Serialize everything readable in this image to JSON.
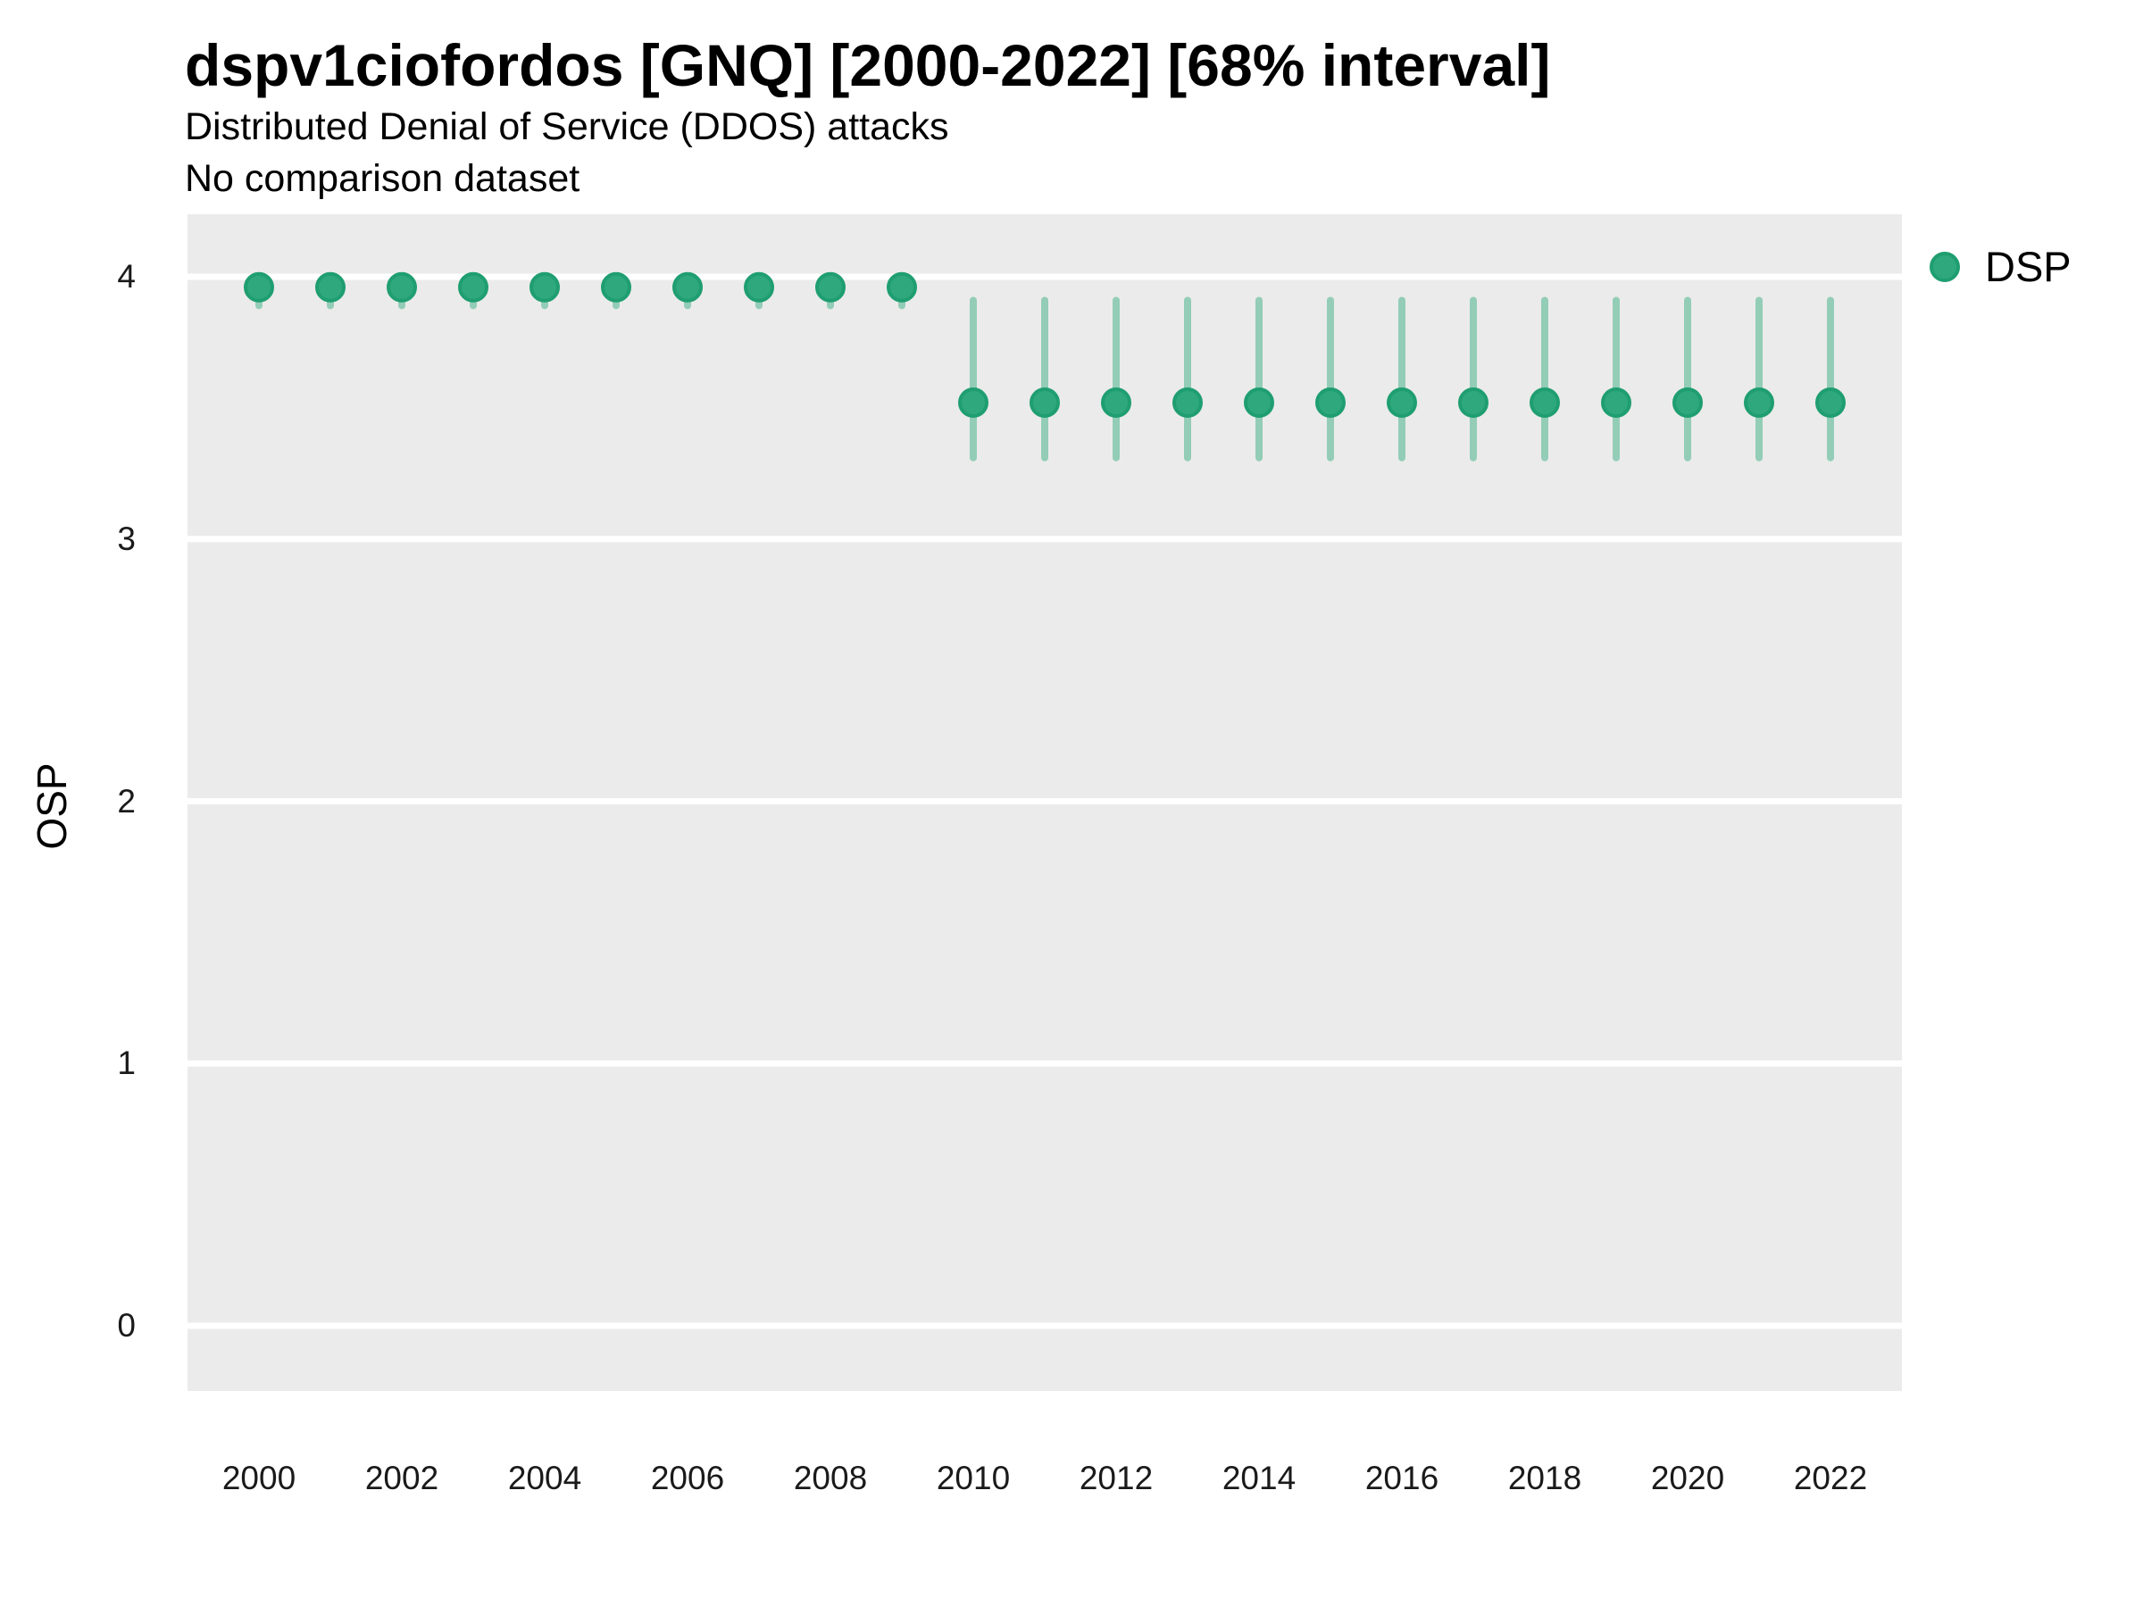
{
  "header": {
    "title": "dspv1ciofordos [GNQ] [2000-2022] [68% interval]",
    "subtitle": "Distributed Denial of Service (DDOS) attacks",
    "note": "No comparison dataset"
  },
  "legend": {
    "label": "DSP"
  },
  "chart_data": {
    "type": "scatter",
    "title": "dspv1ciofordos [GNQ] [2000-2022] [68% interval]",
    "subtitle": "Distributed Denial of Service (DDOS) attacks",
    "note": "No comparison dataset",
    "interval": "68%",
    "xlabel": "",
    "ylabel": "OSP",
    "xlim": [
      1999,
      2023
    ],
    "ylim": [
      -0.25,
      4.24
    ],
    "x_ticks": [
      2000,
      2002,
      2004,
      2006,
      2008,
      2010,
      2012,
      2014,
      2016,
      2018,
      2020,
      2022
    ],
    "y_ticks": [
      0,
      1,
      2,
      3,
      4
    ],
    "grid": "horizontal major white gridlines on gray panel, no vertical gridlines",
    "legend_position": "right",
    "series": [
      {
        "name": "DSP",
        "x": [
          2000,
          2001,
          2002,
          2003,
          2004,
          2005,
          2006,
          2007,
          2008,
          2009,
          2010,
          2011,
          2012,
          2013,
          2014,
          2015,
          2016,
          2017,
          2018,
          2019,
          2020,
          2021,
          2022
        ],
        "y": [
          3.96,
          3.96,
          3.96,
          3.96,
          3.96,
          3.96,
          3.96,
          3.96,
          3.96,
          3.96,
          3.52,
          3.52,
          3.52,
          3.52,
          3.52,
          3.52,
          3.52,
          3.52,
          3.52,
          3.52,
          3.52,
          3.52,
          3.52
        ],
        "lo": [
          3.89,
          3.89,
          3.89,
          3.89,
          3.89,
          3.89,
          3.89,
          3.89,
          3.89,
          3.89,
          3.31,
          3.31,
          3.31,
          3.31,
          3.31,
          3.31,
          3.31,
          3.31,
          3.31,
          3.31,
          3.31,
          3.31,
          3.31
        ],
        "hi": [
          3.99,
          3.99,
          3.99,
          3.99,
          3.99,
          3.99,
          3.99,
          3.99,
          3.99,
          3.99,
          3.91,
          3.91,
          3.91,
          3.91,
          3.91,
          3.91,
          3.91,
          3.91,
          3.91,
          3.91,
          3.91,
          3.91,
          3.91
        ]
      }
    ],
    "colors": {
      "point_fill": "#2fa87e",
      "point_stroke": "#1f9e71",
      "interval_bar": "#93cdb7",
      "panel_bg": "#ebebeb",
      "gridline": "#ffffff",
      "text": "#000000"
    }
  }
}
